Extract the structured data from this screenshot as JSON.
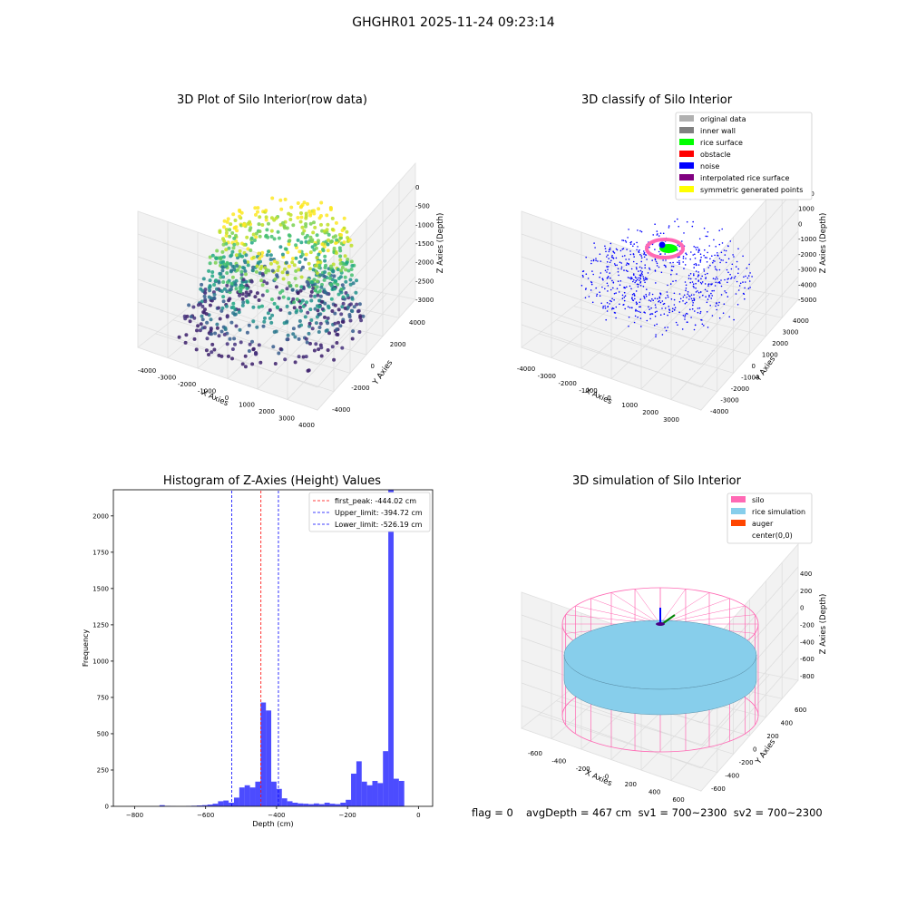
{
  "suptitle": "GHGHR01 2025-11-24 09:23:14",
  "panels": {
    "raw": {
      "title": "3D Plot of Silo Interior(row data)",
      "xlabel": "X Axies",
      "ylabel": "Y Axies",
      "zlabel": "Z Axies (Depth)",
      "xticks": [
        "-4000",
        "-3000",
        "-2000",
        "-1000",
        "0",
        "1000",
        "2000",
        "3000",
        "4000"
      ],
      "yticks": [
        "-4000",
        "-2000",
        "0",
        "2000",
        "4000"
      ],
      "zticks": [
        "0",
        "-500",
        "-1000",
        "-1500",
        "-2000",
        "-2500",
        "-3000"
      ]
    },
    "classify": {
      "title": "3D classify of Silo Interior",
      "xlabel": "X Axies",
      "ylabel": "Y Axies",
      "zlabel": "Z Axies (Depth)",
      "xticks": [
        "-4000",
        "-3000",
        "-2000",
        "-1000",
        "0",
        "1000",
        "2000",
        "3000"
      ],
      "yticks": [
        "-4000",
        "-3000",
        "-2000",
        "-1000",
        "0",
        "1000",
        "2000",
        "3000",
        "4000"
      ],
      "zticks": [
        "2000",
        "1000",
        "0",
        "-1000",
        "-2000",
        "-3000",
        "-4000",
        "-5000"
      ],
      "legend": [
        {
          "label": "original data",
          "color": "#b0b0b0"
        },
        {
          "label": "inner wall",
          "color": "#808080"
        },
        {
          "label": "rice surface",
          "color": "#00ff00"
        },
        {
          "label": "obstacle",
          "color": "#ff0000"
        },
        {
          "label": "noise",
          "color": "#0000ff"
        },
        {
          "label": "interpolated rice surface",
          "color": "#800080"
        },
        {
          "label": "symmetric generated points",
          "color": "#ffff00"
        }
      ]
    },
    "simulation": {
      "title": "3D simulation of Silo Interior",
      "xlabel": "X Axies",
      "ylabel": "Y Axies",
      "zlabel": "Z Axies (Depth)",
      "xticks": [
        "-600",
        "-400",
        "-200",
        "0",
        "200",
        "400",
        "600"
      ],
      "yticks": [
        "-600",
        "-400",
        "-200",
        "0",
        "200",
        "400",
        "600"
      ],
      "zticks": [
        "400",
        "200",
        "0",
        "-200",
        "-400",
        "-600",
        "-800"
      ],
      "legend": [
        {
          "label": "silo",
          "color": "#ff69b4"
        },
        {
          "label": "rice simulation",
          "color": "#87ceeb"
        },
        {
          "label": "auger",
          "color": "#ff4500"
        },
        {
          "label": "center(0,0)",
          "color": "none"
        }
      ]
    }
  },
  "chart_data": [
    {
      "type": "histogram",
      "title": "Histogram of Z-Axies (Height) Values",
      "xlabel": "Depth (cm)",
      "ylabel": "Frequency",
      "xlim": [
        -860,
        40
      ],
      "ylim": [
        0,
        2180
      ],
      "xticks": [
        -800,
        -600,
        -400,
        -200,
        0
      ],
      "yticks": [
        0,
        250,
        500,
        750,
        1000,
        1250,
        1500,
        1750,
        2000
      ],
      "bar_color": "#0000ff",
      "bin_width": 15,
      "bins_start": [
        -730,
        -715,
        -700,
        -685,
        -670,
        -655,
        -640,
        -625,
        -610,
        -595,
        -580,
        -565,
        -550,
        -535,
        -520,
        -505,
        -490,
        -475,
        -460,
        -445,
        -430,
        -415,
        -400,
        -385,
        -370,
        -355,
        -340,
        -325,
        -310,
        -295,
        -280,
        -265,
        -250,
        -235,
        -220,
        -205,
        -190,
        -175,
        -160,
        -145,
        -130,
        -115,
        -100,
        -85,
        -70,
        -55,
        -40,
        -25
      ],
      "counts": [
        8,
        3,
        1,
        0,
        0,
        2,
        4,
        6,
        8,
        12,
        18,
        35,
        40,
        25,
        60,
        130,
        145,
        130,
        170,
        715,
        660,
        170,
        120,
        55,
        35,
        25,
        20,
        18,
        15,
        20,
        15,
        25,
        18,
        15,
        25,
        45,
        225,
        310,
        170,
        145,
        175,
        160,
        380,
        2180,
        190,
        175,
        0,
        0
      ],
      "vlines": [
        {
          "label": "first_peak: -444.02 cm",
          "x": -444.02,
          "color": "#ff0000"
        },
        {
          "label": "Upper_limit: -394.72 cm",
          "x": -394.72,
          "color": "#0000ff"
        },
        {
          "label": "Lower_limit: -526.19 cm",
          "x": -526.19,
          "color": "#0000ff"
        }
      ]
    }
  ],
  "footer": {
    "flag": "flag = 0",
    "avg": "avgDepth = 467 cm  sv1 = 700~2300  sv2 = 700~2300"
  }
}
